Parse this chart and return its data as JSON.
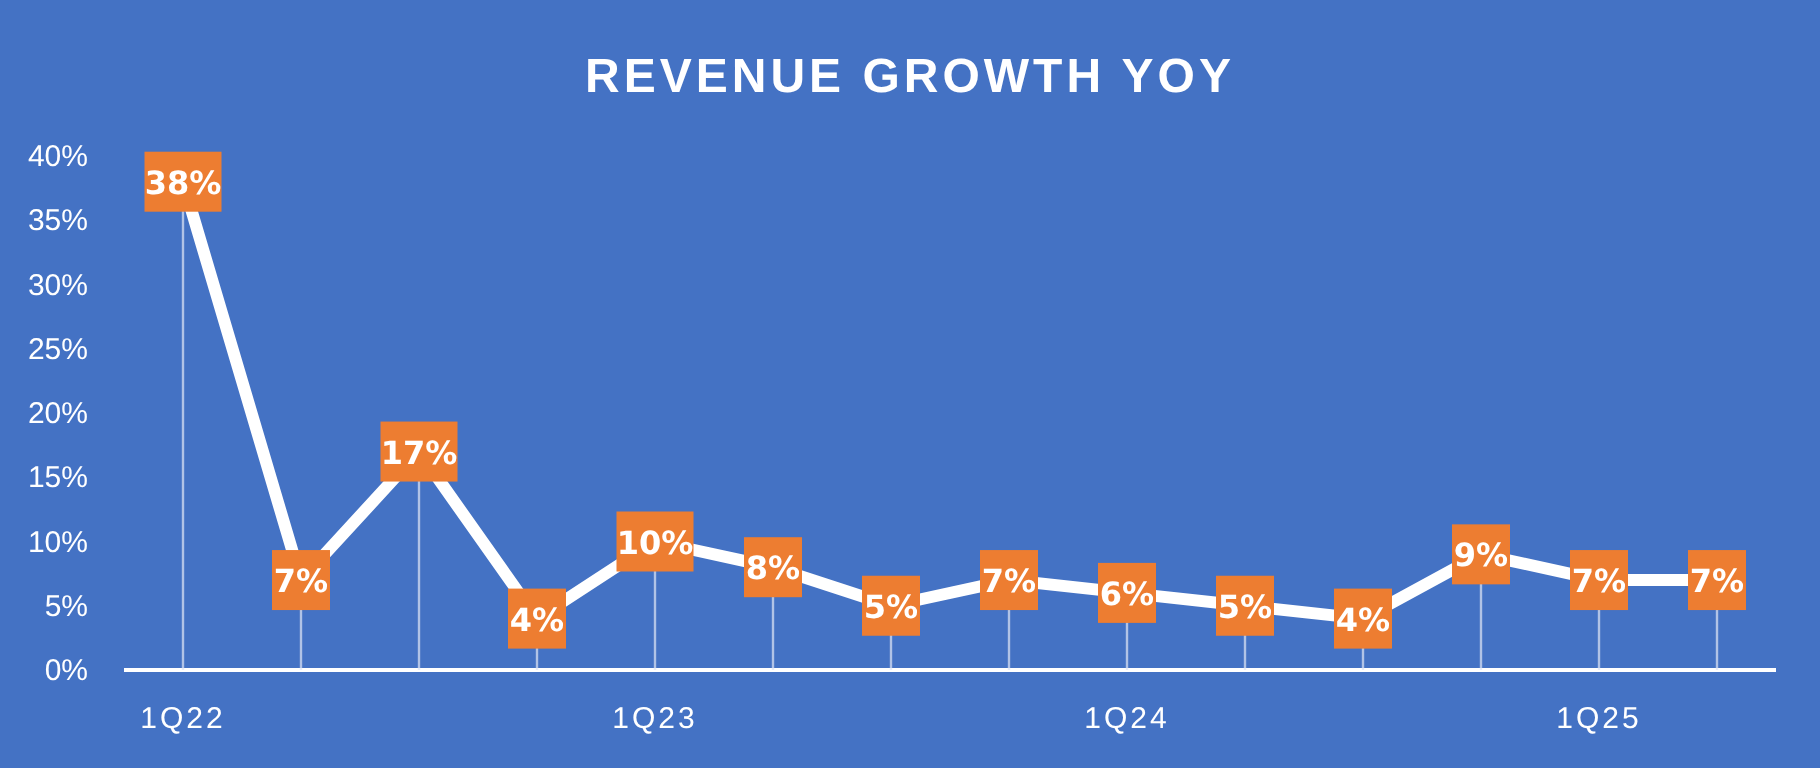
{
  "chart_data": {
    "type": "line",
    "title": "REVENUE GROWTH YOY",
    "categories": [
      "1Q22",
      null,
      null,
      null,
      "1Q23",
      null,
      null,
      null,
      "1Q24",
      null,
      null,
      null,
      "1Q25",
      null
    ],
    "series": [
      {
        "color": "#ffffff",
        "values": [
          38,
          7,
          17,
          4,
          10,
          8,
          5,
          7,
          6,
          5,
          4,
          9,
          7,
          7
        ],
        "value_labels": [
          "38%",
          "7%",
          "17%",
          "4%",
          "10%",
          "8%",
          "5%",
          "7%",
          "6%",
          "5%",
          "4%",
          "9%",
          "7%",
          "7%"
        ]
      }
    ],
    "ylim": [
      0,
      40
    ],
    "yticks": [
      {
        "value": 0,
        "label": "0%"
      },
      {
        "value": 5,
        "label": "5%"
      },
      {
        "value": 10,
        "label": "10%"
      },
      {
        "value": 15,
        "label": "15%"
      },
      {
        "value": 20,
        "label": "20%"
      },
      {
        "value": 25,
        "label": "25%"
      },
      {
        "value": 30,
        "label": "30%"
      },
      {
        "value": 35,
        "label": "35%"
      },
      {
        "value": 40,
        "label": "40%"
      }
    ],
    "grid": "x",
    "marker": "square",
    "line_style": "solid"
  }
}
